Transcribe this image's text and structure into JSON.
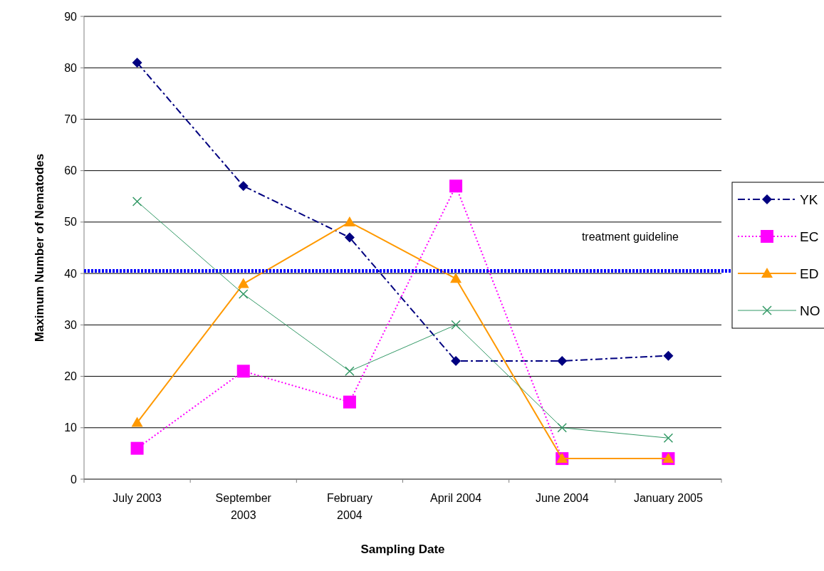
{
  "chart_data": {
    "type": "line",
    "xlabel": "Sampling Date",
    "ylabel": "Maximum Number of Nematodes",
    "categories": [
      "July 2003",
      "September 2003",
      "February 2004",
      "April 2004",
      "June 2004",
      "January 2005"
    ],
    "series": [
      {
        "name": "YK",
        "color": "#000080",
        "marker": "diamond",
        "line_style": "dashed",
        "values": [
          81,
          57,
          47,
          23,
          23,
          24
        ]
      },
      {
        "name": "EC",
        "color": "#ff00ff",
        "marker": "square",
        "line_style": "dotted",
        "values": [
          6,
          21,
          15,
          57,
          4,
          4
        ]
      },
      {
        "name": "ED",
        "color": "#ff9900",
        "marker": "triangle",
        "line_style": "solid",
        "values": [
          11,
          38,
          50,
          39,
          4,
          4
        ]
      },
      {
        "name": "NO",
        "color": "#339966",
        "marker": "cross",
        "line_style": "solid",
        "values": [
          54,
          36,
          21,
          30,
          10,
          8
        ]
      }
    ],
    "ylim": [
      0,
      90
    ],
    "yticks": [
      0,
      10,
      20,
      30,
      40,
      50,
      60,
      70,
      80,
      90
    ],
    "grid": "y",
    "legend": "right",
    "ref_lines": [
      {
        "axis": "y",
        "value": 40.5,
        "label": "treatment guideline",
        "color": "#0000ff",
        "line_style": "dotted"
      }
    ]
  }
}
